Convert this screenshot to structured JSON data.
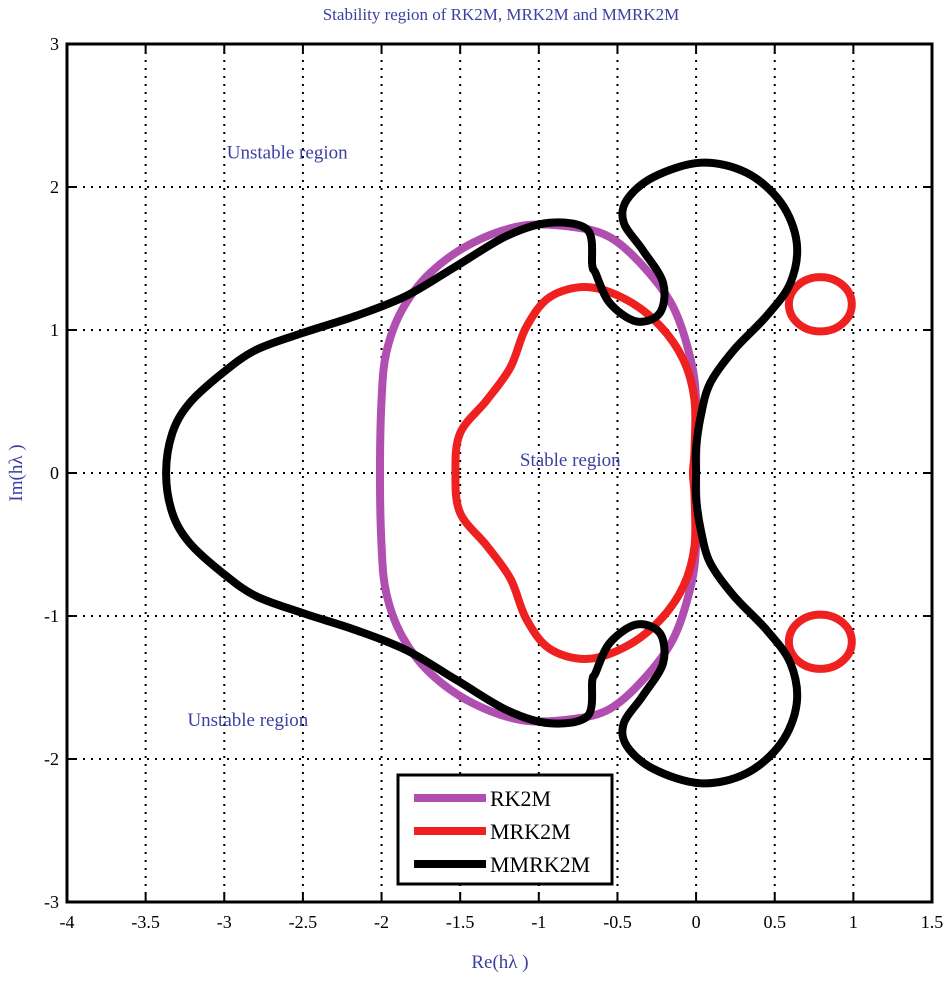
{
  "chart_data": {
    "type": "line",
    "title": "Stability region of RK2M, MRK2M and MMRK2M",
    "xlabel": "Re(hλ )",
    "ylabel": "Im(hλ )",
    "xlim": [
      -4,
      1.5
    ],
    "ylim": [
      -3,
      3
    ],
    "xticks": [
      "-4",
      "-3.5",
      "-3",
      "-2.5",
      "-2",
      "-1.5",
      "-1",
      "-0.5",
      "0",
      "0.5",
      "1",
      "1.5"
    ],
    "yticks": [
      "-3",
      "-2",
      "-1",
      "0",
      "1",
      "2",
      "3"
    ],
    "grid": true,
    "legend_position": "bottom-center",
    "curves_symmetric_about_real_axis": true,
    "series": [
      {
        "name": "RK2M",
        "color": "#b04fb0",
        "upper_half": [
          [
            -2.01,
            0
          ],
          [
            -2.0,
            0.51
          ],
          [
            -1.97,
            0.84
          ],
          [
            -1.87,
            1.14
          ],
          [
            -1.69,
            1.4
          ],
          [
            -1.42,
            1.61
          ],
          [
            -1.1,
            1.73
          ],
          [
            -0.78,
            1.72
          ],
          [
            -0.55,
            1.65
          ],
          [
            -0.34,
            1.45
          ],
          [
            -0.15,
            1.17
          ],
          [
            -0.04,
            0.82
          ],
          [
            0,
            0.51
          ],
          [
            0,
            0
          ]
        ]
      },
      {
        "name": "MRK2M",
        "color": "#ee2020",
        "upper_half": [
          [
            -1.53,
            0
          ],
          [
            -1.5,
            0.28
          ],
          [
            -1.33,
            0.51
          ],
          [
            -1.18,
            0.74
          ],
          [
            -1.08,
            1.02
          ],
          [
            -0.93,
            1.23
          ],
          [
            -0.69,
            1.3
          ],
          [
            -0.44,
            1.21
          ],
          [
            -0.23,
            1.03
          ],
          [
            -0.08,
            0.79
          ],
          [
            -0.01,
            0.51
          ],
          [
            -0.01,
            0.16
          ],
          [
            -0.02,
            0
          ]
        ],
        "islands": [
          {
            "center": [
              0.79,
              1.18
            ],
            "radius": [
              0.2,
              0.19
            ]
          },
          {
            "center": [
              0.79,
              -1.18
            ],
            "radius": [
              0.2,
              0.19
            ]
          }
        ]
      },
      {
        "name": "MMRK2M",
        "color": "#000000",
        "upper_half": [
          [
            -3.37,
            0
          ],
          [
            -3.33,
            0.28
          ],
          [
            -3.22,
            0.49
          ],
          [
            -3.01,
            0.7
          ],
          [
            -2.8,
            0.86
          ],
          [
            -2.5,
            0.98
          ],
          [
            -2.16,
            1.1
          ],
          [
            -1.84,
            1.24
          ],
          [
            -1.52,
            1.45
          ],
          [
            -1.2,
            1.66
          ],
          [
            -0.93,
            1.75
          ],
          [
            -0.69,
            1.7
          ],
          [
            -0.66,
            1.45
          ],
          [
            -0.64,
            1.4
          ],
          [
            -0.55,
            1.19
          ],
          [
            -0.38,
            1.06
          ],
          [
            -0.23,
            1.12
          ],
          [
            -0.21,
            1.33
          ],
          [
            -0.34,
            1.56
          ],
          [
            -0.46,
            1.75
          ],
          [
            -0.44,
            1.91
          ],
          [
            -0.27,
            2.07
          ],
          [
            0.03,
            2.17
          ],
          [
            0.32,
            2.1
          ],
          [
            0.54,
            1.89
          ],
          [
            0.64,
            1.61
          ],
          [
            0.6,
            1.33
          ],
          [
            0.45,
            1.1
          ],
          [
            0.24,
            0.86
          ],
          [
            0.09,
            0.63
          ],
          [
            0.03,
            0.4
          ],
          [
            0,
            0.17
          ],
          [
            0,
            0
          ]
        ]
      }
    ],
    "annotations": [
      {
        "text": "Unstable region",
        "x": -2.6,
        "y": 2.2
      },
      {
        "text": "Unstable region",
        "x": -2.85,
        "y": -1.77
      },
      {
        "text": "Stable region",
        "x": -0.8,
        "y": 0.05
      }
    ],
    "text_color": "#3b3fa0"
  }
}
